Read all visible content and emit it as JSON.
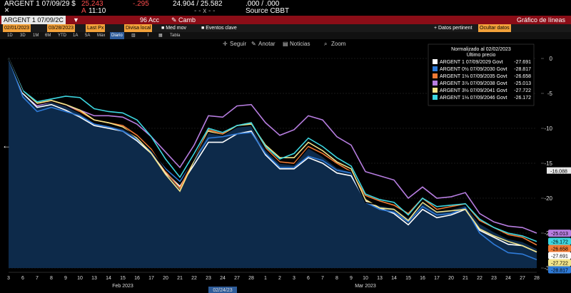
{
  "header": {
    "ticker": "ARGENT 1 07/09/29 $",
    "price": "25.243",
    "change": "-.295",
    "bid_ask": "24.904 / 25.582",
    "spread": ".000 / .000",
    "acc_label": "Acc",
    "camb_label": "Camb",
    "time_prefix": "A",
    "time": "11:10",
    "dashes": "- - x - -",
    "source": "Source CBBT",
    "security_field": "ARGENT 1 07/09/2C",
    "actions_num": "96",
    "actions_label": "Acciones",
    "title_right": "Gráfico de líneas",
    "close_icon": "×"
  },
  "controls": {
    "start_date": "02/01/2023",
    "end_date": "03/28/2023",
    "field": "Last Px",
    "currency": "Divisa local",
    "med_mov": "Med mov",
    "eventos": "Eventos clave",
    "datos_pertinent": "Datos pertinent",
    "ocultar_datos": "Ocultar datos"
  },
  "range_buttons": [
    "1D",
    "3D",
    "1M",
    "6M",
    "YTD",
    "1A",
    "5A",
    "Máx",
    "Diario",
    "Tabla"
  ],
  "tools": {
    "seguir": "Seguir",
    "anotar": "Anotar",
    "noticias": "Noticias",
    "zoom": "Zoom"
  },
  "chart_data": {
    "type": "area",
    "title": "Normalizado al 02/02/2023",
    "subtitle": "Último precio",
    "x_ticks": [
      "3",
      "6",
      "7",
      "8",
      "9",
      "10",
      "13",
      "14",
      "15",
      "16",
      "17",
      "20",
      "21",
      "22",
      "23",
      "24",
      "27",
      "28",
      "1",
      "2",
      "3",
      "6",
      "7",
      "8",
      "9",
      "10",
      "13",
      "14",
      "15",
      "16",
      "17",
      "20",
      "21",
      "22",
      "23",
      "24",
      "27",
      "28"
    ],
    "x_month_labels": [
      {
        "label": "Feb 2023",
        "at_index": 8
      },
      {
        "label": "Mar 2023",
        "at_index": 25
      }
    ],
    "crosshair_label": "02/24/23",
    "crosshair_value": "-16.088",
    "ylim": [
      -30,
      0
    ],
    "y_ticks": [
      0,
      -5,
      -10,
      -15,
      -20,
      -25,
      -30
    ],
    "series": [
      {
        "name": "ARGENT 1 07/09/2029 Govt",
        "last": "-27.691",
        "color": "#ffffff",
        "values": [
          0,
          -5,
          -7,
          -6.6,
          -7.4,
          -8.4,
          -9.6,
          -10,
          -10.4,
          -11.8,
          -13.6,
          -16.4,
          -18.3,
          -15.2,
          -12,
          -12,
          -10.8,
          -10.4,
          -13.8,
          -15.8,
          -15.8,
          -14.2,
          -15,
          -16.4,
          -16.8,
          -20.4,
          -21.4,
          -22.2,
          -23.8,
          -21.6,
          -22.8,
          -22.4,
          -21.6,
          -24.6,
          -25.6,
          -26.6,
          -26.8,
          -27.7
        ]
      },
      {
        "name": "ARGENT 0½ 07/09/2030 Govt",
        "last": "-28.817",
        "color": "#2f7bd8",
        "values": [
          0,
          -5.5,
          -7.6,
          -7,
          -7.6,
          -8.2,
          -9.4,
          -9.8,
          -10.4,
          -11.6,
          -13.4,
          -15.8,
          -17.6,
          -14.6,
          -11.4,
          -11.2,
          -10.8,
          -10.6,
          -13.6,
          -15.6,
          -15.6,
          -14,
          -14.6,
          -16,
          -16.4,
          -20.6,
          -21.6,
          -22,
          -23.4,
          -21.2,
          -22.4,
          -22.2,
          -21.4,
          -25,
          -26.6,
          -27.8,
          -28,
          -28.8
        ]
      },
      {
        "name": "ARGENT 1⅛ 07/09/2035 Govt",
        "last": "-26.658",
        "color": "#f07a35",
        "values": [
          0,
          -4.6,
          -6.6,
          -6,
          -6.8,
          -7.6,
          -8.8,
          -9.2,
          -9.6,
          -11,
          -13,
          -16.2,
          -18.6,
          -14.4,
          -10.2,
          -10.8,
          -9.6,
          -9.2,
          -12.8,
          -14.8,
          -15,
          -12.6,
          -13.6,
          -15,
          -16.2,
          -19.6,
          -20.4,
          -21,
          -22.2,
          -20,
          -21.6,
          -21.2,
          -20.8,
          -23.2,
          -24.2,
          -25.2,
          -25.6,
          -26.7
        ]
      },
      {
        "name": "ARGENT 3⅞ 07/09/2038 Govt",
        "last": "-25.013",
        "color": "#b77de0",
        "values": [
          0,
          -4.6,
          -6.8,
          -6.2,
          -6.8,
          -7.4,
          -8.2,
          -8.2,
          -8.4,
          -9.4,
          -11.2,
          -13.4,
          -15.6,
          -12.4,
          -8.2,
          -8.4,
          -6.8,
          -6.6,
          -9.2,
          -11,
          -10.2,
          -8.2,
          -8.8,
          -11.2,
          -12.4,
          -16.2,
          -16.8,
          -17.4,
          -20,
          -18.4,
          -20,
          -19.8,
          -19.2,
          -22.2,
          -23.4,
          -24,
          -24.2,
          -25
        ]
      },
      {
        "name": "ARGENT 3½ 07/09/2041 Govt",
        "last": "-27.722",
        "color": "#f2e48a",
        "values": [
          0,
          -4.8,
          -6.4,
          -6,
          -6.6,
          -7.4,
          -8.8,
          -9.2,
          -9.8,
          -11.4,
          -13.6,
          -16.6,
          -19,
          -14.6,
          -10.4,
          -11,
          -9.6,
          -9.4,
          -12.4,
          -14.2,
          -14.2,
          -12,
          -13.2,
          -14.8,
          -15.8,
          -20.2,
          -21.4,
          -21.6,
          -23.2,
          -20.6,
          -22,
          -21.8,
          -21.6,
          -24.4,
          -25.4,
          -26.2,
          -26.8,
          -27.7
        ]
      },
      {
        "name": "ARGENT 1⅛ 07/09/2046 Govt",
        "last": "-26.172",
        "color": "#3cd6e0",
        "values": [
          0,
          -4.6,
          -6.2,
          -5.8,
          -5.4,
          -5.6,
          -7.2,
          -7.6,
          -7.8,
          -8.8,
          -11.2,
          -14.4,
          -17,
          -13.6,
          -10,
          -10.6,
          -9.6,
          -9.2,
          -12.6,
          -14.4,
          -13.6,
          -11.4,
          -12.6,
          -14.2,
          -15.4,
          -19.4,
          -20.2,
          -20.6,
          -22.4,
          -20,
          -21.2,
          -21,
          -20.8,
          -23,
          -24.2,
          -25,
          -25.4,
          -26.2
        ]
      }
    ],
    "black_series_values": [
      0,
      -4.8,
      -6.6,
      -6.2,
      -6.8,
      -7.8,
      -9.2,
      -9.6,
      -10,
      -11.2,
      -13.2,
      -16,
      -18,
      -14.4,
      -10.6,
      -11,
      -9.8,
      -9.6,
      -13,
      -15,
      -15.2,
      -12.8,
      -14,
      -15.6,
      -16.2,
      -20.6,
      -21,
      -21.4,
      -22.8,
      -20.4,
      -21.8,
      -21.6,
      -21,
      -23.6,
      -24.8,
      -25.8,
      -26.2,
      -27.2
    ],
    "grid": true,
    "legend_position": "top-right"
  },
  "colors": {
    "accent_red": "#8b0d17",
    "accent_orange": "#f2a13a",
    "area_fill": "#0d2a4a"
  }
}
